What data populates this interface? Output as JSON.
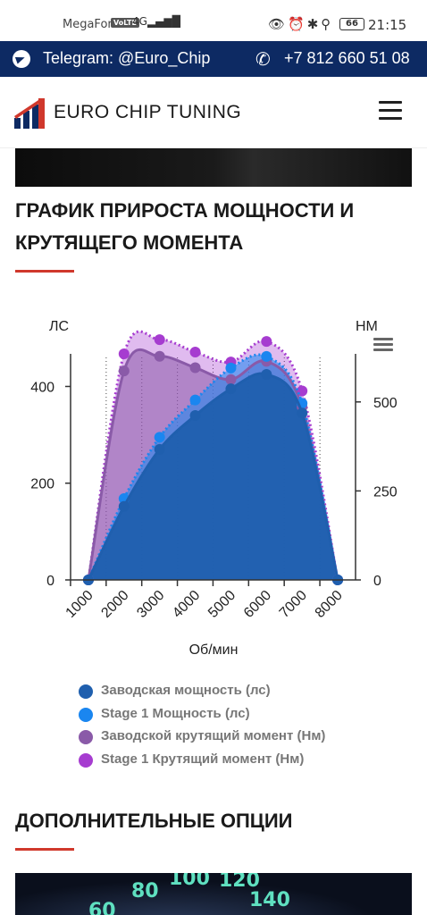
{
  "status_bar": {
    "carrier": "MegaFon",
    "volte": "VoLTE",
    "signal": "4G",
    "battery": "66",
    "time": "21:15"
  },
  "topbar": {
    "telegram": "Telegram: @Euro_Chip",
    "phone": "+7 812 660 51 08"
  },
  "header": {
    "logo_text": "EURO CHIP TUNING"
  },
  "section1": {
    "title_line1": "ГРАФИК ПРИРОСТА МОЩНОСТИ И",
    "title_line2": "КРУТЯЩЕГО МОМЕНТА"
  },
  "section2": {
    "title": "ДОПОЛНИТЕЛЬНЫЕ ОПЦИИ"
  },
  "gauge_numbers": [
    "60",
    "80",
    "100",
    "120",
    "140"
  ],
  "colors": {
    "brand_blue": "#0d2a63",
    "accent_red": "#d0382c",
    "factory_power": "#1f5fae",
    "stage1_power": "#1a86f0",
    "factory_torque": "#8a5aa8",
    "stage1_torque": "#a63cd0"
  },
  "chart_data": {
    "type": "area",
    "xlabel": "Об/мин",
    "ylabel_left": "ЛС",
    "ylabel_right": "НМ",
    "x_ticks": [
      1000,
      2000,
      3000,
      4000,
      5000,
      6000,
      7000,
      8000
    ],
    "xlim": [
      500,
      8500
    ],
    "ylim_left": [
      0,
      460
    ],
    "ylim_right": [
      0,
      625
    ],
    "y_ticks_left": [
      0,
      200,
      400
    ],
    "y_ticks_right": [
      0,
      250,
      500
    ],
    "series": [
      {
        "name": "Заводская мощность (лс)",
        "axis": "left",
        "x": [
          1000,
          2000,
          3000,
          4000,
          5000,
          6000,
          7000,
          8000
        ],
        "values": [
          0,
          152,
          270,
          340,
          395,
          425,
          345,
          0
        ]
      },
      {
        "name": "Stage 1 Мощность (лс)",
        "axis": "left",
        "x": [
          1000,
          2000,
          3000,
          4000,
          5000,
          6000,
          7000,
          8000
        ],
        "values": [
          0,
          168,
          295,
          372,
          438,
          462,
          365,
          0
        ]
      },
      {
        "name": "Заводской крутящий момент (Нм)",
        "axis": "right",
        "x": [
          1000,
          2000,
          3000,
          4000,
          5000,
          6000,
          7000,
          8000
        ],
        "values": [
          0,
          587,
          628,
          596,
          563,
          614,
          486,
          0
        ]
      },
      {
        "name": "Stage 1 Крутящий момент (Нм)",
        "axis": "right",
        "x": [
          1000,
          2000,
          3000,
          4000,
          5000,
          6000,
          7000,
          8000
        ],
        "values": [
          0,
          635,
          675,
          640,
          612,
          670,
          531,
          0
        ]
      }
    ]
  }
}
